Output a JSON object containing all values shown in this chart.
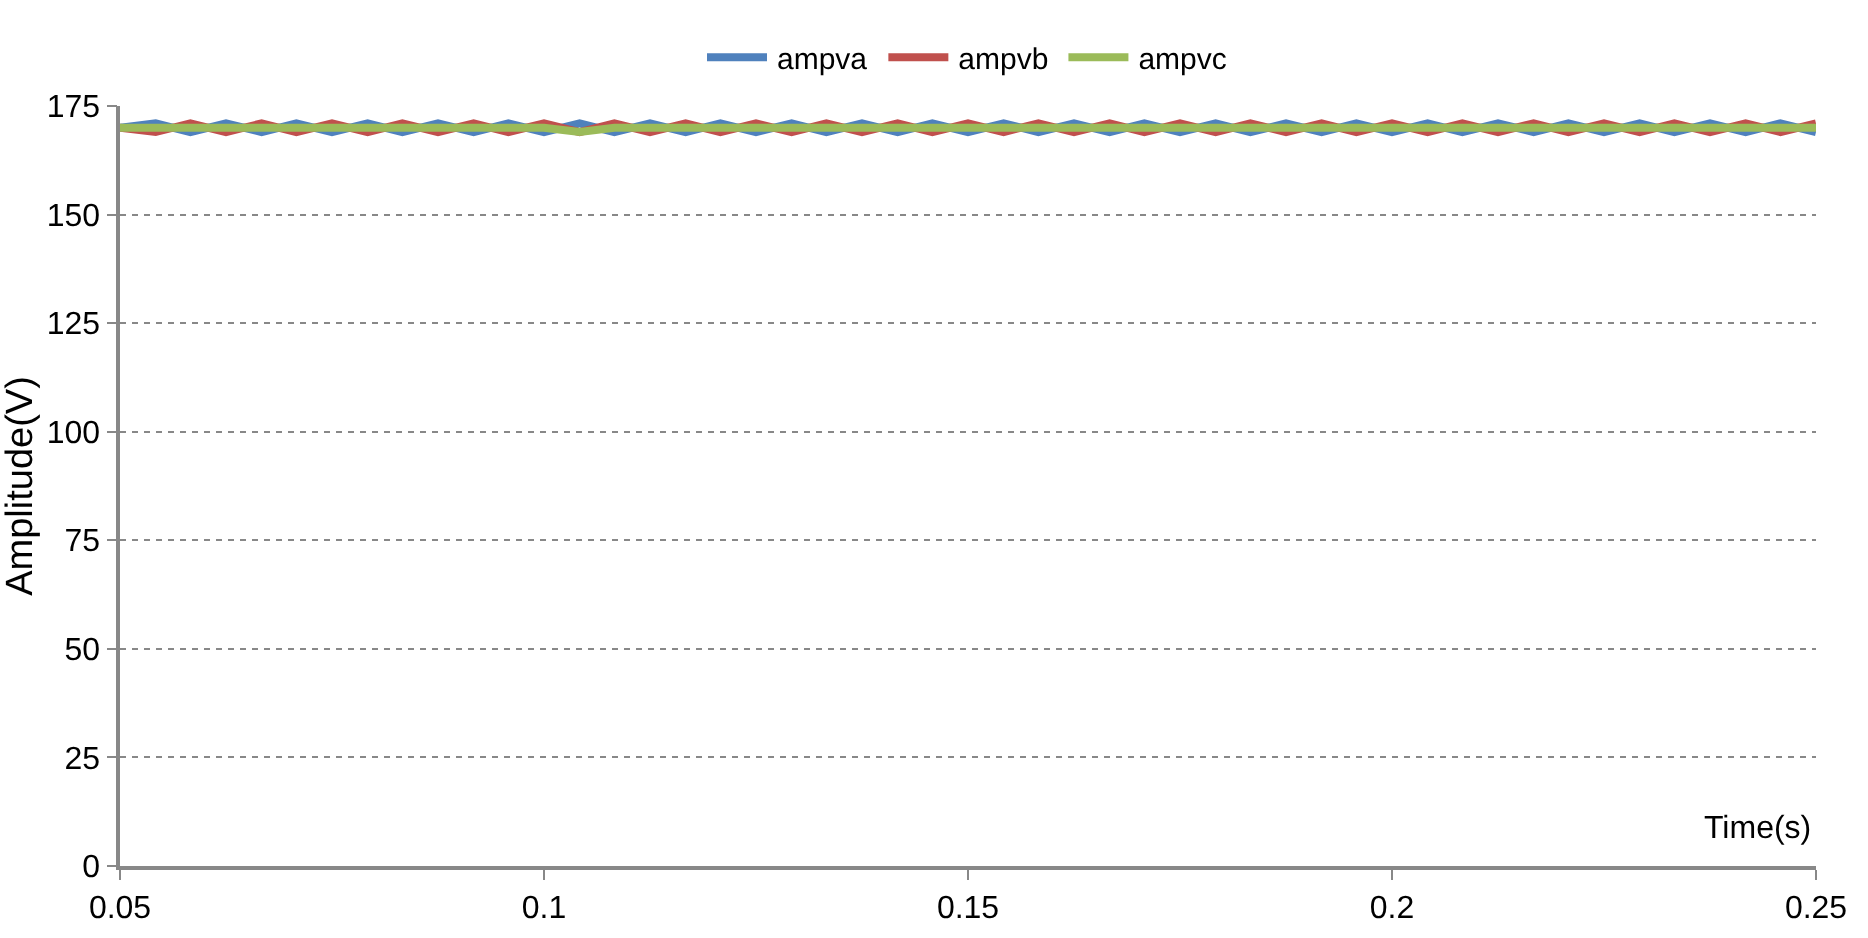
{
  "chart_data": {
    "type": "line",
    "xlabel": "Time(s)",
    "ylabel": "Amplitude(V)",
    "x": [
      0.05,
      0.0542,
      0.0583,
      0.0625,
      0.0667,
      0.0708,
      0.075,
      0.0792,
      0.0833,
      0.0875,
      0.0917,
      0.0958,
      0.1,
      0.1042,
      0.1083,
      0.1125,
      0.1167,
      0.1208,
      0.125,
      0.1292,
      0.1333,
      0.1375,
      0.1417,
      0.1458,
      0.15,
      0.1542,
      0.1583,
      0.1625,
      0.1667,
      0.1708,
      0.175,
      0.1792,
      0.1833,
      0.1875,
      0.1917,
      0.1958,
      0.2,
      0.2042,
      0.2083,
      0.2125,
      0.2167,
      0.2208,
      0.225,
      0.2292,
      0.2333,
      0.2375,
      0.2417,
      0.2458,
      0.25
    ],
    "series": [
      {
        "name": "ampva",
        "color": "#4f81bd",
        "values": [
          170,
          171,
          169,
          171,
          169,
          171,
          169,
          171,
          169,
          171,
          169,
          171,
          169,
          171,
          169,
          171,
          169,
          171,
          169,
          171,
          169,
          171,
          169,
          171,
          169,
          171,
          169,
          171,
          169,
          171,
          169,
          171,
          169,
          171,
          169,
          171,
          169,
          171,
          169,
          171,
          169,
          171,
          169,
          171,
          169,
          171,
          169,
          171,
          169
        ]
      },
      {
        "name": "ampvb",
        "color": "#c0504d",
        "values": [
          170,
          169,
          171,
          169,
          171,
          169,
          171,
          169,
          171,
          169,
          171,
          169,
          171,
          169,
          171,
          169,
          171,
          169,
          171,
          169,
          171,
          169,
          171,
          169,
          171,
          169,
          171,
          169,
          171,
          169,
          171,
          169,
          171,
          169,
          171,
          169,
          171,
          169,
          171,
          169,
          171,
          169,
          171,
          169,
          171,
          169,
          171,
          169,
          171
        ]
      },
      {
        "name": "ampvc",
        "color": "#9bbb59",
        "values": [
          170,
          170,
          170,
          170,
          170,
          170,
          170,
          170,
          170,
          170,
          170,
          170,
          170,
          169,
          170,
          170,
          170,
          170,
          170,
          170,
          170,
          170,
          170,
          170,
          170,
          170,
          170,
          170,
          170,
          170,
          170,
          170,
          170,
          170,
          170,
          170,
          170,
          170,
          170,
          170,
          170,
          170,
          170,
          170,
          170,
          170,
          170,
          170,
          170
        ]
      }
    ],
    "xlim": [
      0.05,
      0.25
    ],
    "xticks": [
      0.05,
      0.1,
      0.15,
      0.2,
      0.25
    ],
    "ylim": [
      0,
      175
    ],
    "yticks": [
      0,
      25,
      50,
      75,
      100,
      125,
      150,
      175
    ],
    "grid": "y",
    "legend": "top",
    "marker": "none",
    "line_style": "solid"
  }
}
